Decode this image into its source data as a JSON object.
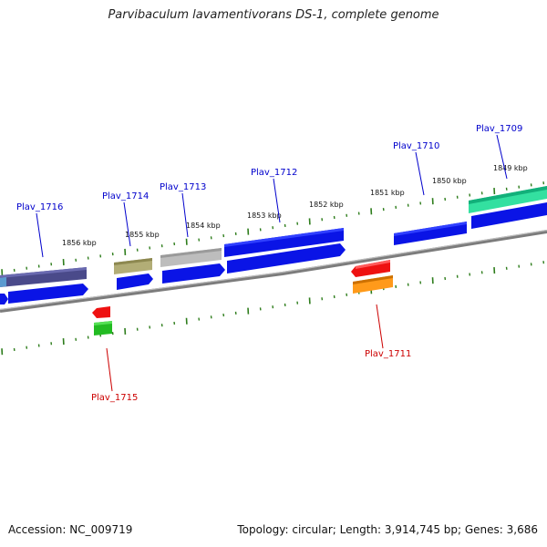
{
  "title": "Parvibaculum lavamentivorans DS-1, complete genome",
  "footer": {
    "accession": "Accession: NC_009719",
    "summary": "Topology: circular; Length: 3,914,745 bp; Genes: 3,686"
  },
  "colors": {
    "plus_label": "#0000cc",
    "minus_label": "#cc0000",
    "backbone": "#8a8a8a",
    "tick": "#2e7d1c",
    "cds": "#0a14e6"
  },
  "kbp_labels": [
    "1856 kbp",
    "1855 kbp",
    "1854 kbp",
    "1853 kbp",
    "1852 kbp",
    "1851 kbp",
    "1850 kbp",
    "1849 kbp"
  ],
  "genes": [
    {
      "name": "Plav_1716",
      "strand": "+"
    },
    {
      "name": "Plav_1715",
      "strand": "-"
    },
    {
      "name": "Plav_1714",
      "strand": "+"
    },
    {
      "name": "Plav_1713",
      "strand": "+"
    },
    {
      "name": "Plav_1712",
      "strand": "+"
    },
    {
      "name": "Plav_1711",
      "strand": "-"
    },
    {
      "name": "Plav_1710",
      "strand": "+"
    },
    {
      "name": "Plav_1709",
      "strand": "+"
    }
  ]
}
